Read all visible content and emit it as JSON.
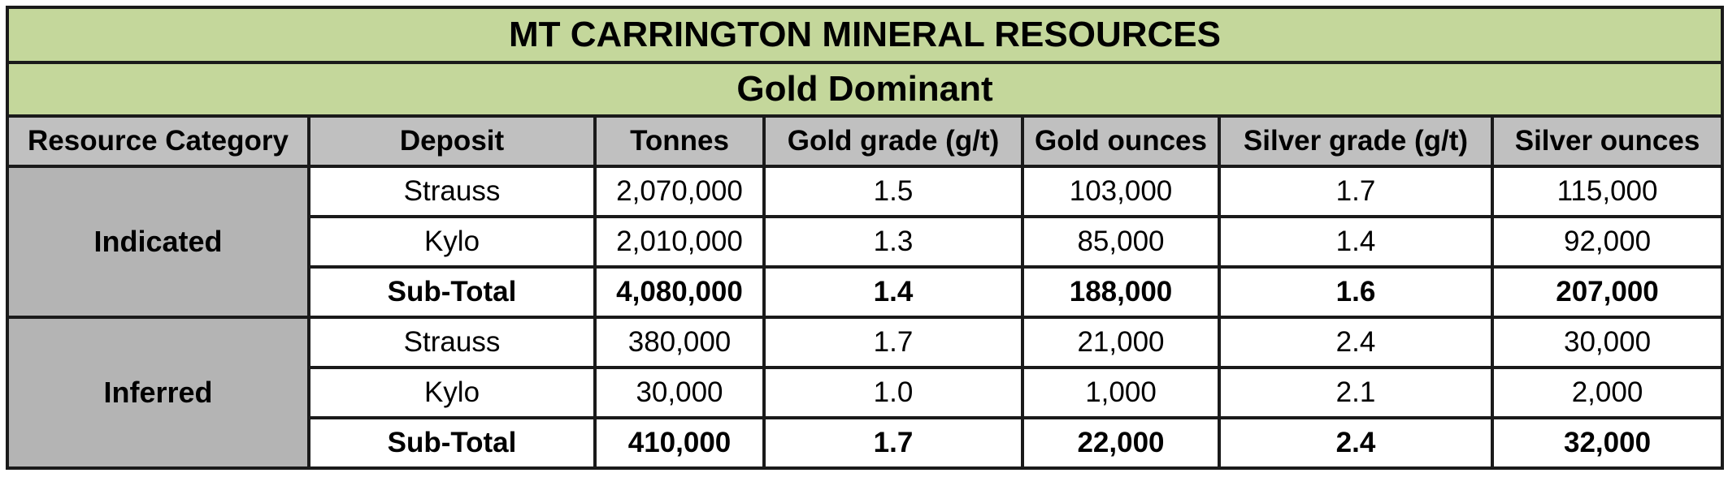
{
  "title": "MT CARRINGTON MINERAL RESOURCES",
  "subtitle": "Gold Dominant",
  "colors": {
    "title_background": "#c4d79b",
    "header_background": "#c0c0c0",
    "category_background": "#b4b4b4",
    "border": "#1a1a1a"
  },
  "headers": {
    "category": "Resource Category",
    "deposit": "Deposit",
    "tonnes": "Tonnes",
    "gold_grade": "Gold grade (g/t)",
    "gold_ounces": "Gold ounces",
    "silver_grade": "Silver grade (g/t)",
    "silver_ounces": "Silver ounces"
  },
  "groups": [
    {
      "category": "Indicated",
      "rows": [
        {
          "deposit": "Strauss",
          "tonnes": "2,070,000",
          "gold_grade": "1.5",
          "gold_ounces": "103,000",
          "silver_grade": "1.7",
          "silver_ounces": "115,000"
        },
        {
          "deposit": "Kylo",
          "tonnes": "2,010,000",
          "gold_grade": "1.3",
          "gold_ounces": "85,000",
          "silver_grade": "1.4",
          "silver_ounces": "92,000"
        },
        {
          "deposit": "Sub-Total",
          "tonnes": "4,080,000",
          "gold_grade": "1.4",
          "gold_ounces": "188,000",
          "silver_grade": "1.6",
          "silver_ounces": "207,000"
        }
      ]
    },
    {
      "category": "Inferred",
      "rows": [
        {
          "deposit": "Strauss",
          "tonnes": "380,000",
          "gold_grade": "1.7",
          "gold_ounces": "21,000",
          "silver_grade": "2.4",
          "silver_ounces": "30,000"
        },
        {
          "deposit": "Kylo",
          "tonnes": "30,000",
          "gold_grade": "1.0",
          "gold_ounces": "1,000",
          "silver_grade": "2.1",
          "silver_ounces": "2,000"
        },
        {
          "deposit": "Sub-Total",
          "tonnes": "410,000",
          "gold_grade": "1.7",
          "gold_ounces": "22,000",
          "silver_grade": "2.4",
          "silver_ounces": "32,000"
        }
      ]
    }
  ]
}
